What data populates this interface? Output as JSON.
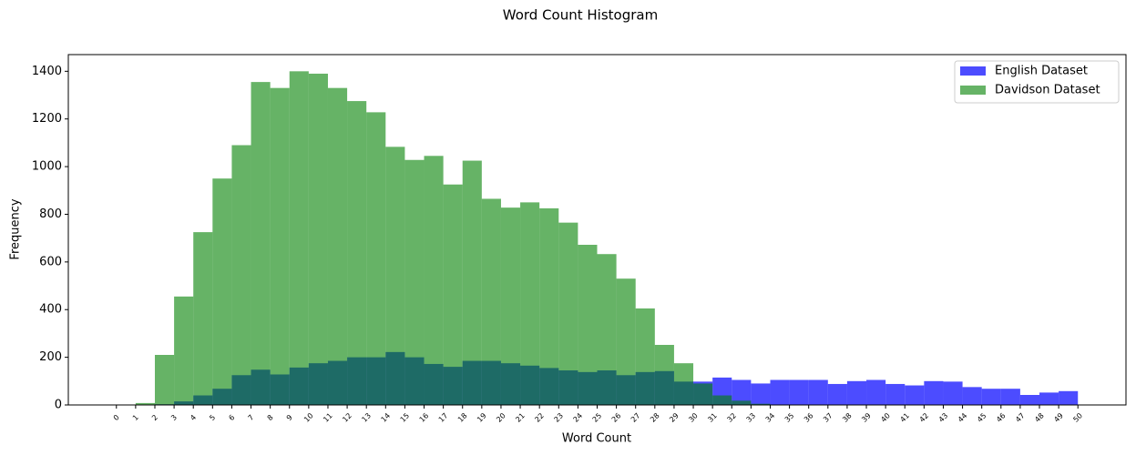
{
  "chart_data": {
    "type": "histogram",
    "title": "Word Count Histogram",
    "x_label": "Word Count",
    "y_label": "Frequency",
    "bins": [
      0,
      1,
      2,
      3,
      4,
      5,
      6,
      7,
      8,
      9,
      10,
      11,
      12,
      13,
      14,
      15,
      16,
      17,
      18,
      19,
      20,
      21,
      22,
      23,
      24,
      25,
      26,
      27,
      28,
      29,
      30,
      31,
      32,
      33,
      34,
      35,
      36,
      37,
      38,
      39,
      40,
      41,
      42,
      43,
      44,
      45,
      46,
      47,
      48,
      49,
      50
    ],
    "series": [
      {
        "name": "English Dataset",
        "color": "#0000ff",
        "opacity": 0.7,
        "values": [
          0,
          0,
          3,
          15,
          40,
          68,
          125,
          148,
          128,
          157,
          175,
          185,
          200,
          200,
          222,
          200,
          172,
          160,
          185,
          185,
          175,
          165,
          155,
          145,
          138,
          145,
          125,
          138,
          142,
          98,
          98,
          115,
          105,
          90,
          105,
          105,
          105,
          88,
          100,
          105,
          88,
          82,
          100,
          98,
          75,
          68,
          68,
          42,
          52,
          58
        ]
      },
      {
        "name": "Davidson Dataset",
        "color": "#008000",
        "opacity": 0.6,
        "values": [
          0,
          8,
          210,
          455,
          725,
          950,
          1090,
          1355,
          1330,
          1400,
          1390,
          1330,
          1275,
          1228,
          1083,
          1028,
          1045,
          925,
          1025,
          865,
          828,
          850,
          825,
          765,
          672,
          633,
          530,
          405,
          252,
          175,
          90,
          40,
          18,
          5,
          0,
          0,
          0,
          0,
          0,
          0,
          0,
          0,
          0,
          0,
          0,
          0,
          0,
          0,
          0,
          0
        ]
      }
    ],
    "xlim": [
      -2.5,
      52.5
    ],
    "ylim": [
      0,
      1470
    ],
    "xticks": [
      0,
      1,
      2,
      3,
      4,
      5,
      6,
      7,
      8,
      9,
      10,
      11,
      12,
      13,
      14,
      15,
      16,
      17,
      18,
      19,
      20,
      21,
      22,
      23,
      24,
      25,
      26,
      27,
      28,
      29,
      30,
      31,
      32,
      33,
      34,
      35,
      36,
      37,
      38,
      39,
      40,
      41,
      42,
      43,
      44,
      45,
      46,
      47,
      48,
      49,
      50
    ],
    "yticks": [
      0,
      200,
      400,
      600,
      800,
      1000,
      1200,
      1400
    ],
    "legend": "upper right"
  }
}
